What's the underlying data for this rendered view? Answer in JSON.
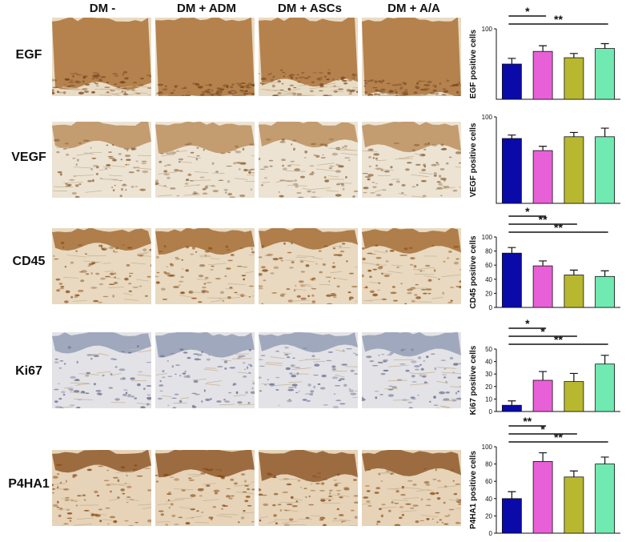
{
  "columns": [
    "DM -",
    "DM + ADM",
    "DM + ASCs",
    "DM + A/A"
  ],
  "rows": [
    "EGF",
    "VEGF",
    "CD45",
    "Ki67",
    "P4HA1"
  ],
  "colors": {
    "dm_minus": "#0a0aa8",
    "dm_adm": "#e860d8",
    "dm_ascs": "#b8b830",
    "dm_aa": "#70eab0"
  },
  "chart_data": [
    {
      "type": "bar",
      "categories": [
        "DM -",
        "DM + ADM",
        "DM + ASCs",
        "DM + A/A"
      ],
      "values": [
        50,
        68,
        59,
        72
      ],
      "errors": [
        8,
        8,
        6,
        7
      ],
      "ylabel": "EGF positive cells",
      "ylim": [
        0,
        100
      ],
      "yticks": [
        "100"
      ],
      "significance": [
        {
          "from": 0,
          "to": 1,
          "label": "*"
        },
        {
          "from": 0,
          "to": 3,
          "label": "**"
        }
      ]
    },
    {
      "type": "bar",
      "categories": [
        "DM -",
        "DM + ADM",
        "DM + ASCs",
        "DM + A/A"
      ],
      "values": [
        75,
        61,
        77,
        77
      ],
      "errors": [
        4,
        5,
        5,
        10
      ],
      "ylabel": "VEGF positive cells",
      "ylim": [
        0,
        100
      ],
      "yticks": [
        "100"
      ],
      "significance": []
    },
    {
      "type": "bar",
      "categories": [
        "DM -",
        "DM + ADM",
        "DM + ASCs",
        "DM + A/A"
      ],
      "values": [
        77,
        59,
        46,
        44
      ],
      "errors": [
        8,
        7,
        7,
        8
      ],
      "ylabel": "CD45 positive cells",
      "ylim": [
        0,
        100
      ],
      "yticks": [
        "100",
        "80",
        "60",
        "40",
        "20",
        "0"
      ],
      "significance": [
        {
          "from": 0,
          "to": 1,
          "label": "*"
        },
        {
          "from": 0,
          "to": 2,
          "label": "**"
        },
        {
          "from": 0,
          "to": 3,
          "label": "**"
        }
      ]
    },
    {
      "type": "bar",
      "categories": [
        "DM -",
        "DM + ADM",
        "DM + ASCs",
        "DM + A/A"
      ],
      "values": [
        5,
        25,
        24,
        38
      ],
      "errors": [
        3.5,
        7,
        6.5,
        7
      ],
      "ylabel": "Ki67 positive cells",
      "ylim": [
        0,
        50
      ],
      "yticks": [
        "50",
        "40",
        "30",
        "20",
        "10",
        "0"
      ],
      "significance": [
        {
          "from": 0,
          "to": 1,
          "label": "*"
        },
        {
          "from": 0,
          "to": 2,
          "label": "*"
        },
        {
          "from": 0,
          "to": 3,
          "label": "**"
        }
      ]
    },
    {
      "type": "bar",
      "categories": [
        "DM -",
        "DM + ADM",
        "DM + ASCs",
        "DM + A/A"
      ],
      "values": [
        40,
        83,
        65,
        80
      ],
      "errors": [
        8,
        10,
        7,
        8
      ],
      "ylabel": "P4HA1 positive cells",
      "ylim": [
        0,
        100
      ],
      "yticks": [
        "100",
        "80",
        "60",
        "40",
        "20",
        "0"
      ],
      "significance": [
        {
          "from": 0,
          "to": 1,
          "label": "**"
        },
        {
          "from": 0,
          "to": 2,
          "label": "*"
        },
        {
          "from": 0,
          "to": 3,
          "label": "**"
        }
      ]
    }
  ]
}
